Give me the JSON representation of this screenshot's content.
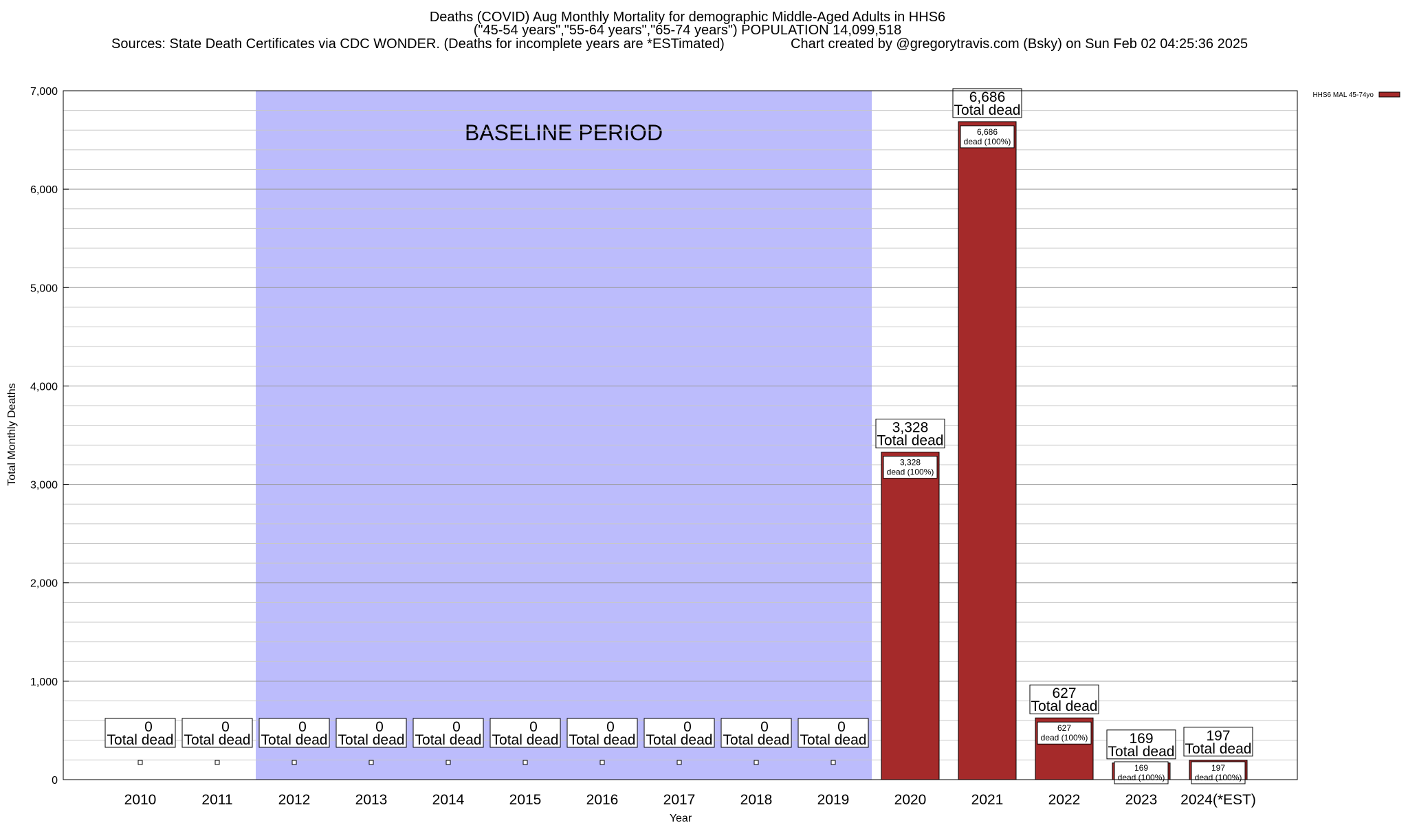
{
  "header": {
    "title_line1": "Deaths (COVID) Aug Monthly Mortality for demographic Middle-Aged Adults in HHS6",
    "title_line2": "(\"45-54 years\",\"55-64 years\",\"65-74 years\") POPULATION 14,099,518",
    "sources": "Sources: State Death Certificates via CDC WONDER. (Deaths for incomplete years are *ESTimated)",
    "credit": "Chart created by @gregorytravis.com (Bsky) on Sun Feb 02 04:25:36 2025"
  },
  "chart_data": {
    "type": "bar",
    "xlabel": "Year",
    "ylabel": "Total Monthly Deaths",
    "ylim": [
      0,
      7000
    ],
    "yticks": [
      0,
      1000,
      2000,
      3000,
      4000,
      5000,
      6000,
      7000
    ],
    "ytick_labels": [
      "0",
      "1,000",
      "2,000",
      "3,000",
      "4,000",
      "5,000",
      "6,000",
      "7,000"
    ],
    "minor_grid_step": 200,
    "grid": true,
    "categories": [
      "2010",
      "2011",
      "2012",
      "2013",
      "2014",
      "2015",
      "2016",
      "2017",
      "2018",
      "2019",
      "2020",
      "2021",
      "2022",
      "2023",
      "2024(*EST)"
    ],
    "series": [
      {
        "name": "HHS6 MAL 45-74yo",
        "color": "#a52a2a",
        "values": [
          0,
          0,
          0,
          0,
          0,
          0,
          0,
          0,
          0,
          0,
          3328,
          6686,
          627,
          169,
          197
        ]
      }
    ],
    "total_labels": [
      "0",
      "0",
      "0",
      "0",
      "0",
      "0",
      "0",
      "0",
      "0",
      "0",
      "3,328",
      "6,686",
      "627",
      "169",
      "197"
    ],
    "total_suffix": "Total dead",
    "inner_labels": [
      "",
      "",
      "",
      "",
      "",
      "",
      "",
      "",
      "",
      "",
      "3,328",
      "6,686",
      "627",
      "169",
      "197"
    ],
    "inner_suffix": "dead (100%)",
    "baseline_period": {
      "label": "BASELINE PERIOD",
      "from_category": "2012",
      "to_category": "2019",
      "color": "#bcbcfc"
    },
    "legend_position": "top-right"
  }
}
